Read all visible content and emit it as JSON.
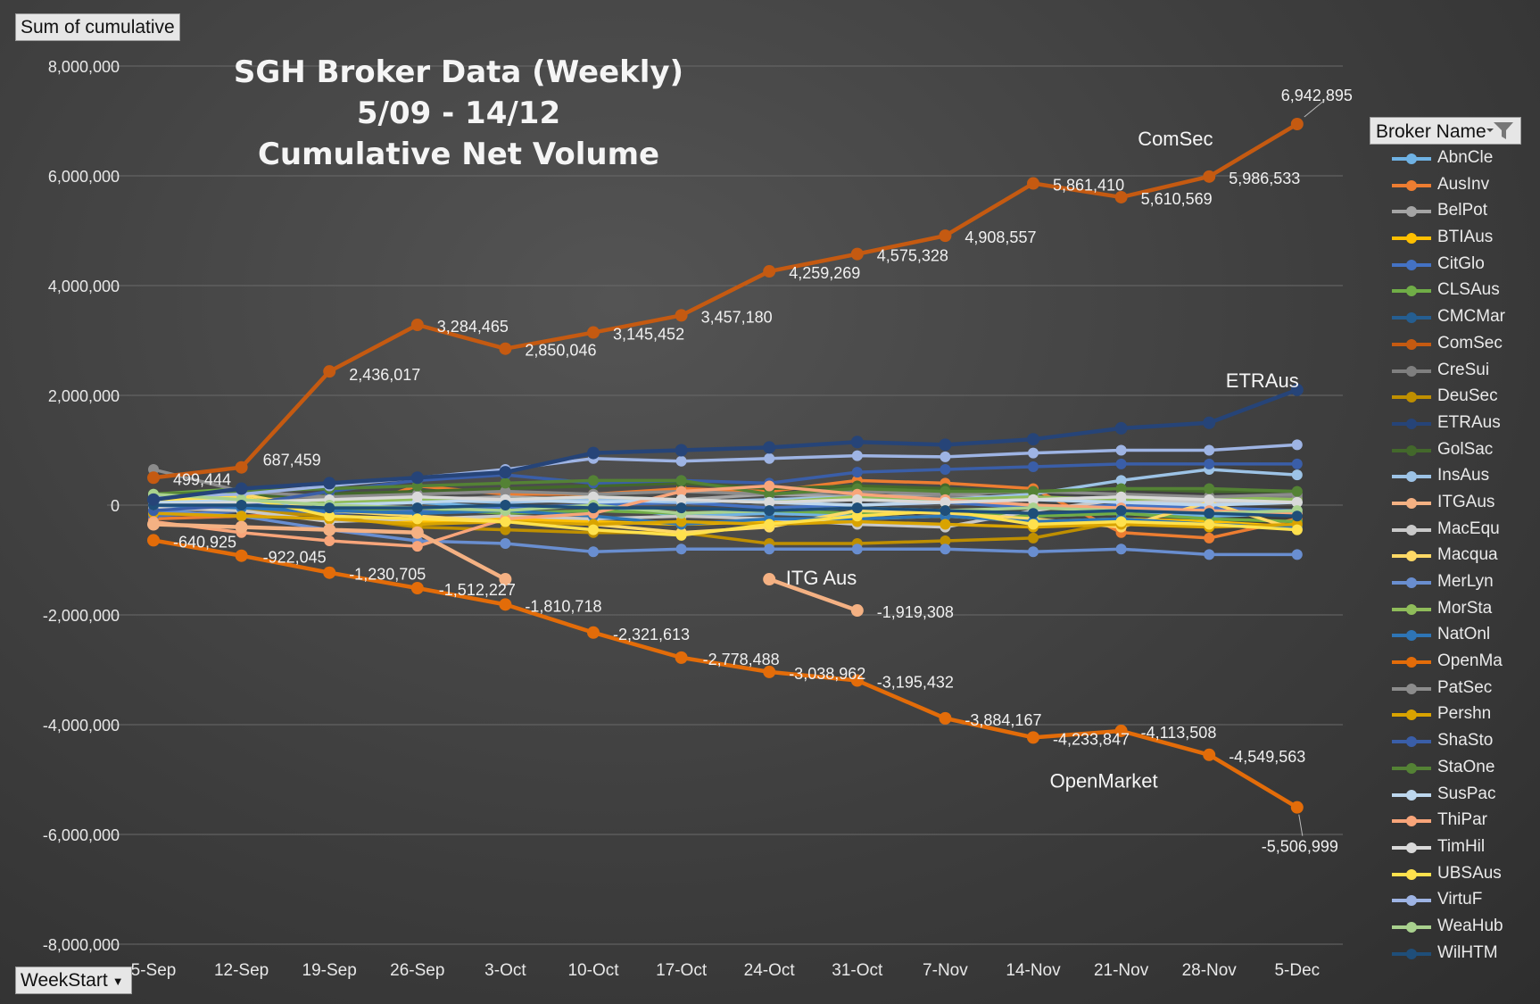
{
  "field_buttons": {
    "sum": "Sum of cumulative",
    "week": "WeekStart"
  },
  "legend": {
    "header": "Broker Name"
  },
  "chart_data": {
    "type": "line",
    "title": [
      "SGH Broker Data (Weekly)",
      "5/09 - 14/12",
      "Cumulative Net Volume"
    ],
    "xlabel": "",
    "ylabel": "",
    "categories": [
      "5-Sep",
      "12-Sep",
      "19-Sep",
      "26-Sep",
      "3-Oct",
      "10-Oct",
      "17-Oct",
      "24-Oct",
      "31-Oct",
      "7-Nov",
      "14-Nov",
      "21-Nov",
      "28-Nov",
      "5-Dec"
    ],
    "ylim": [
      -8000000,
      8000000
    ],
    "yticks": [
      8000000,
      6000000,
      4000000,
      2000000,
      0,
      -2000000,
      -4000000,
      -6000000,
      -8000000
    ],
    "ytick_labels": [
      "8,000,000",
      "6,000,000",
      "4,000,000",
      "2,000,000",
      "0",
      "-2,000,000",
      "-4,000,000",
      "-6,000,000",
      "-8,000,000"
    ],
    "grid": true,
    "legend_position": "right",
    "annotations": [
      {
        "text": "ComSec",
        "x": "28-Nov",
        "y": 6550000
      },
      {
        "text": "ETRAus",
        "x": "5-Dec",
        "y": 2150000
      },
      {
        "text": "ITG Aus",
        "x": "31-Oct",
        "y": -1450000
      },
      {
        "text": "OpenMarket",
        "x": "21-Nov",
        "y": -5150000
      }
    ],
    "series": [
      {
        "name": "AbnCle",
        "color": "#6fb2e4",
        "values": [
          -100000,
          -50000,
          0,
          50000,
          -50000,
          0,
          -200000,
          -150000,
          -200000,
          -100000,
          -200000,
          -150000,
          -200000,
          -150000
        ]
      },
      {
        "name": "AusInv",
        "color": "#ed7d31",
        "values": [
          -250000,
          -200000,
          -150000,
          350000,
          200000,
          200000,
          300000,
          250000,
          450000,
          400000,
          300000,
          -500000,
          -600000,
          -250000
        ]
      },
      {
        "name": "BelPot",
        "color": "#a5a5a5",
        "values": [
          100000,
          200000,
          150000,
          100000,
          150000,
          100000,
          100000,
          200000,
          150000,
          200000,
          100000,
          150000,
          100000,
          50000
        ]
      },
      {
        "name": "BTIAus",
        "color": "#ffc000",
        "values": [
          50000,
          100000,
          -200000,
          -300000,
          -250000,
          -300000,
          -350000,
          -300000,
          -250000,
          -200000,
          -300000,
          -250000,
          -300000,
          -400000
        ]
      },
      {
        "name": "CitGlo",
        "color": "#4472c4",
        "values": [
          -200000,
          -100000,
          -150000,
          -100000,
          -50000,
          0,
          50000,
          -50000,
          0,
          50000,
          -50000,
          0,
          -50000,
          -100000
        ]
      },
      {
        "name": "CLSAus",
        "color": "#70ad47",
        "values": [
          200000,
          300000,
          -100000,
          -50000,
          -150000,
          -100000,
          -150000,
          -100000,
          -150000,
          -100000,
          -200000,
          -150000,
          -250000,
          -300000
        ]
      },
      {
        "name": "CMCMar",
        "color": "#255e91",
        "values": [
          0,
          50000,
          0,
          50000,
          100000,
          150000,
          100000,
          50000,
          100000,
          50000,
          100000,
          50000,
          100000,
          50000
        ]
      },
      {
        "name": "ComSec",
        "color": "#c55a11",
        "values": [
          499444,
          687459,
          2436017,
          3284465,
          2850046,
          3145452,
          3457180,
          4259269,
          4575328,
          4908557,
          5861410,
          5610569,
          5986533,
          6942895
        ]
      },
      {
        "name": "CreSui",
        "color": "#7f7f7f",
        "values": [
          150000,
          150000,
          100000,
          100000,
          50000,
          100000,
          100000,
          50000,
          100000,
          150000,
          100000,
          150000,
          100000,
          150000
        ]
      },
      {
        "name": "DeuSec",
        "color": "#bf8f00",
        "values": [
          -50000,
          -100000,
          -200000,
          -400000,
          -450000,
          -500000,
          -500000,
          -700000,
          -700000,
          -650000,
          -600000,
          -300000,
          -350000,
          -400000
        ]
      },
      {
        "name": "ETRAus",
        "color": "#264478",
        "values": [
          100000,
          300000,
          400000,
          500000,
          600000,
          950000,
          1000000,
          1050000,
          1150000,
          1100000,
          1200000,
          1400000,
          1500000,
          2100000
        ]
      },
      {
        "name": "GolSac",
        "color": "#43682b",
        "values": [
          100000,
          150000,
          200000,
          250000,
          300000,
          350000,
          400000,
          300000,
          350000,
          300000,
          250000,
          300000,
          250000,
          250000
        ]
      },
      {
        "name": "InsAus",
        "color": "#9dc3e6",
        "values": [
          50000,
          0,
          50000,
          100000,
          50000,
          100000,
          50000,
          100000,
          150000,
          100000,
          200000,
          450000,
          650000,
          550000
        ]
      },
      {
        "name": "ITGAus",
        "color": "#f4b183",
        "values": [
          -350000,
          -400000,
          -450000,
          -500000,
          -1350000,
          null,
          null,
          -1350000,
          -1919308,
          null,
          null,
          null,
          null,
          null
        ]
      },
      {
        "name": "MacEqu",
        "color": "#c9c9c9",
        "values": [
          -50000,
          -100000,
          -300000,
          -250000,
          -200000,
          -250000,
          -200000,
          -250000,
          -350000,
          -400000,
          -100000,
          100000,
          50000,
          50000
        ]
      },
      {
        "name": "Macqua",
        "color": "#ffd966",
        "values": [
          0,
          200000,
          -100000,
          -200000,
          -300000,
          -350000,
          -500000,
          -400000,
          -100000,
          -150000,
          -250000,
          -400000,
          50000,
          -450000
        ]
      },
      {
        "name": "MerLyn",
        "color": "#698ed0",
        "values": [
          -100000,
          -200000,
          -450000,
          -650000,
          -700000,
          -850000,
          -800000,
          -800000,
          -800000,
          -800000,
          -850000,
          -800000,
          -900000,
          -900000
        ]
      },
      {
        "name": "MorSta",
        "color": "#8fbc5a",
        "values": [
          150000,
          100000,
          50000,
          100000,
          100000,
          150000,
          100000,
          50000,
          150000,
          100000,
          150000,
          100000,
          150000,
          100000
        ]
      },
      {
        "name": "NatOnl",
        "color": "#2e75b6",
        "values": [
          0,
          -50000,
          -100000,
          -150000,
          -100000,
          -200000,
          -350000,
          -250000,
          -250000,
          -200000,
          -300000,
          -250000,
          -350000,
          -400000
        ]
      },
      {
        "name": "OpenMa",
        "color": "#e36c09",
        "values": [
          -640925,
          -922045,
          -1230705,
          -1512227,
          -1810718,
          -2321613,
          -2778488,
          -3038962,
          -3195432,
          -3884167,
          -4233847,
          -4113508,
          -4549563,
          -5506999
        ]
      },
      {
        "name": "PatSec",
        "color": "#8c8c8c",
        "values": [
          650000,
          250000,
          150000,
          200000,
          250000,
          200000,
          250000,
          200000,
          250000,
          200000,
          250000,
          200000,
          150000,
          200000
        ]
      },
      {
        "name": "Pershn",
        "color": "#d9a300",
        "values": [
          -150000,
          -200000,
          -250000,
          -350000,
          -300000,
          -350000,
          -300000,
          -350000,
          -300000,
          -350000,
          -400000,
          -350000,
          -400000,
          -350000
        ]
      },
      {
        "name": "ShaSto",
        "color": "#3a5ea8",
        "values": [
          -100000,
          0,
          250000,
          450000,
          550000,
          400000,
          450000,
          400000,
          600000,
          650000,
          700000,
          750000,
          750000,
          750000
        ]
      },
      {
        "name": "StaOne",
        "color": "#548235",
        "values": [
          200000,
          250000,
          300000,
          350000,
          400000,
          450000,
          450000,
          200000,
          300000,
          250000,
          250000,
          300000,
          300000,
          250000
        ]
      },
      {
        "name": "SusPac",
        "color": "#bdd7ee",
        "values": [
          50000,
          100000,
          0,
          50000,
          100000,
          50000,
          100000,
          50000,
          0,
          50000,
          100000,
          50000,
          0,
          50000
        ]
      },
      {
        "name": "ThiPar",
        "color": "#f8a57a",
        "values": [
          -300000,
          -500000,
          -650000,
          -750000,
          -250000,
          -150000,
          250000,
          350000,
          200000,
          100000,
          0,
          -50000,
          -100000,
          -150000
        ]
      },
      {
        "name": "TimHil",
        "color": "#d9d9d9",
        "values": [
          0,
          50000,
          100000,
          150000,
          100000,
          150000,
          100000,
          50000,
          100000,
          50000,
          100000,
          150000,
          100000,
          50000
        ]
      },
      {
        "name": "UBSAus",
        "color": "#ffe14d",
        "values": [
          100000,
          150000,
          -200000,
          -250000,
          -300000,
          -450000,
          -550000,
          -350000,
          -200000,
          -100000,
          -350000,
          -300000,
          -350000,
          -450000
        ]
      },
      {
        "name": "VirtuF",
        "color": "#9eb4e4",
        "values": [
          150000,
          200000,
          350000,
          500000,
          650000,
          850000,
          800000,
          850000,
          900000,
          880000,
          950000,
          1000000,
          1000000,
          1100000
        ]
      },
      {
        "name": "WeaHub",
        "color": "#a9d18e",
        "values": [
          200000,
          100000,
          0,
          -50000,
          -100000,
          0,
          -150000,
          -100000,
          -50000,
          -100000,
          -50000,
          -100000,
          -150000,
          -100000
        ]
      },
      {
        "name": "WilHTM",
        "color": "#1f4e79",
        "values": [
          0,
          0,
          -50000,
          -50000,
          0,
          -50000,
          -50000,
          -100000,
          -50000,
          -100000,
          -150000,
          -100000,
          -150000,
          -200000
        ]
      }
    ],
    "data_labels": [
      {
        "series": "ComSec",
        "points": [
          [
            0,
            "499,444"
          ],
          [
            1,
            "687,459"
          ],
          [
            2,
            "2,436,017"
          ],
          [
            3,
            "3,284,465"
          ],
          [
            4,
            "2,850,046"
          ],
          [
            5,
            "3,145,452"
          ],
          [
            6,
            "3,457,180"
          ],
          [
            7,
            "4,259,269"
          ],
          [
            8,
            "4,575,328"
          ],
          [
            9,
            "4,908,557"
          ],
          [
            10,
            "5,861,410"
          ],
          [
            11,
            "5,610,569"
          ],
          [
            12,
            "5,986,533"
          ],
          [
            13,
            "6,942,895"
          ]
        ]
      },
      {
        "series": "OpenMa",
        "points": [
          [
            0,
            "-640,925"
          ],
          [
            1,
            "-922,045"
          ],
          [
            2,
            "-1,230,705"
          ],
          [
            3,
            "-1,512,227"
          ],
          [
            4,
            "-1,810,718"
          ],
          [
            5,
            "-2,321,613"
          ],
          [
            6,
            "-2,778,488"
          ],
          [
            7,
            "-3,038,962"
          ],
          [
            8,
            "-3,195,432"
          ],
          [
            9,
            "-3,884,167"
          ],
          [
            10,
            "-4,233,847"
          ],
          [
            11,
            "-4,113,508"
          ],
          [
            12,
            "-4,549,563"
          ],
          [
            13,
            "-5,506,999"
          ]
        ]
      },
      {
        "series": "ITGAus",
        "points": [
          [
            8,
            "-1,919,308"
          ]
        ]
      }
    ]
  }
}
